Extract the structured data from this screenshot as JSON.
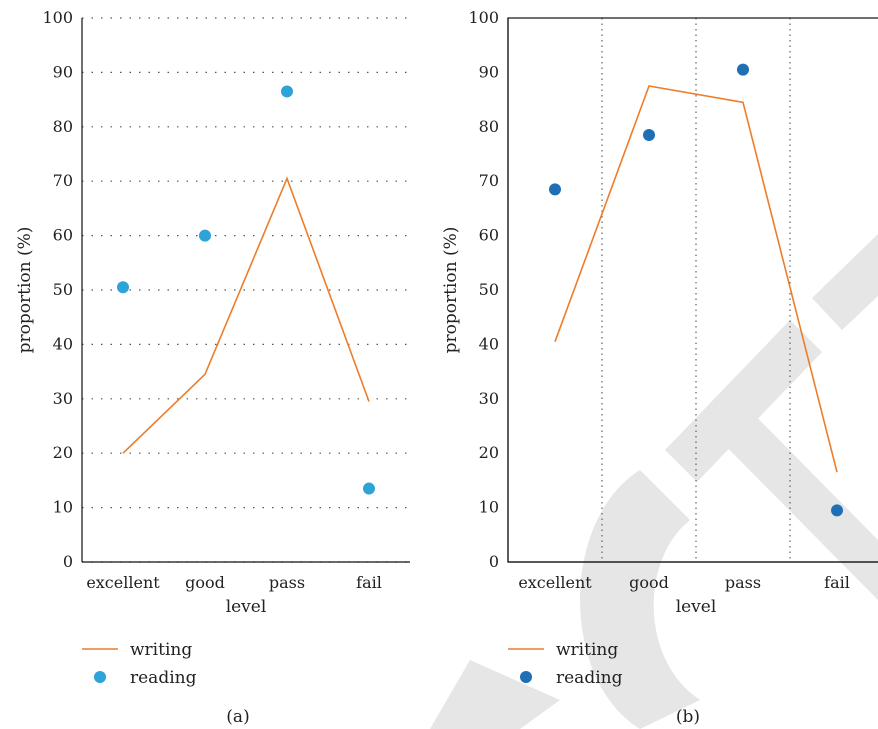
{
  "colors": {
    "writing": "#ee7d2b",
    "reading_a": "#2ea3d8",
    "reading_b": "#1f6fb5",
    "watermark": "#e6e6e6"
  },
  "chart_data": [
    {
      "type": "line",
      "caption": "(a)",
      "categories": [
        "excellent",
        "good",
        "pass",
        "fail"
      ],
      "xlabel": "level",
      "ylabel": "proportion (%)",
      "ylim": [
        0,
        100
      ],
      "yticks": [
        0,
        10,
        20,
        30,
        40,
        50,
        60,
        70,
        80,
        90,
        100
      ],
      "grid": "horizontal dotted",
      "legend_position": "bottom-left",
      "series": [
        {
          "name": "writing",
          "kind": "line",
          "values": [
            20,
            34.5,
            70.5,
            29.5
          ]
        },
        {
          "name": "reading",
          "kind": "scatter",
          "values": [
            50.5,
            60,
            86.5,
            13.5
          ]
        }
      ]
    },
    {
      "type": "line",
      "caption": "(b)",
      "categories": [
        "excellent",
        "good",
        "pass",
        "fail"
      ],
      "xlabel": "level",
      "ylabel": "proportion (%)",
      "ylim": [
        0,
        100
      ],
      "yticks": [
        0,
        10,
        20,
        30,
        40,
        50,
        60,
        70,
        80,
        90,
        100
      ],
      "grid": "vertical dotted",
      "legend_position": "bottom-left",
      "series": [
        {
          "name": "writing",
          "kind": "line",
          "values": [
            40.5,
            87.5,
            84.5,
            16.5
          ]
        },
        {
          "name": "reading",
          "kind": "scatter",
          "values": [
            68.5,
            78.5,
            90.5,
            9.5
          ]
        }
      ]
    }
  ]
}
